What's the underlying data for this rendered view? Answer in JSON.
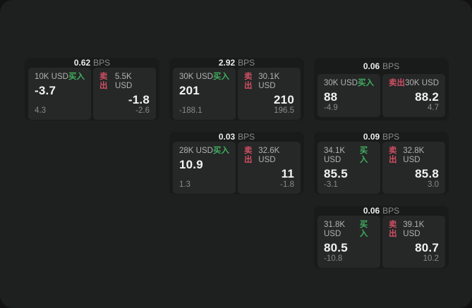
{
  "labels": {
    "buy": "买入",
    "sell": "卖出",
    "bps_unit": "BPS"
  },
  "colors": {
    "buy_green": "#3fae5e",
    "sell_red": "#cd4f63",
    "surface": "#1e1f1f",
    "outer_background": "#121212",
    "card_background": "#191a1a",
    "cell_background": "#262727"
  },
  "cards": [
    {
      "bps": "0.62",
      "col": 1,
      "row": 1,
      "buy": {
        "amount": "10K USD",
        "price": "-3.7",
        "delta": "4.3"
      },
      "sell": {
        "amount": "5.5K USD",
        "price": "-1.8",
        "delta": "-2.6"
      }
    },
    {
      "bps": "2.92",
      "col": 2,
      "row": 1,
      "buy": {
        "amount": "30K USD",
        "price": "201",
        "delta": "-188.1"
      },
      "sell": {
        "amount": "30.1K USD",
        "price": "210",
        "delta": "196.5"
      }
    },
    {
      "bps": "0.06",
      "col": 3,
      "row": 1,
      "buy": {
        "amount": "30K USD",
        "price": "88",
        "delta": "-4.9"
      },
      "sell": {
        "amount": "30K USD",
        "price": "88.2",
        "delta": "4.7"
      }
    },
    {
      "bps": "0.03",
      "col": 2,
      "row": 2,
      "buy": {
        "amount": "28K USD",
        "price": "10.9",
        "delta": "1.3"
      },
      "sell": {
        "amount": "32.6K USD",
        "price": "11",
        "delta": "-1.8"
      }
    },
    {
      "bps": "0.09",
      "col": 3,
      "row": 2,
      "buy": {
        "amount": "34.1K USD",
        "price": "85.5",
        "delta": "-3.1"
      },
      "sell": {
        "amount": "32.8K USD",
        "price": "85.8",
        "delta": "3.0"
      }
    },
    {
      "bps": "0.06",
      "col": 3,
      "row": 3,
      "buy": {
        "amount": "31.8K USD",
        "price": "80.5",
        "delta": "-10.8"
      },
      "sell": {
        "amount": "39.1K USD",
        "price": "80.7",
        "delta": "10.2"
      }
    }
  ]
}
